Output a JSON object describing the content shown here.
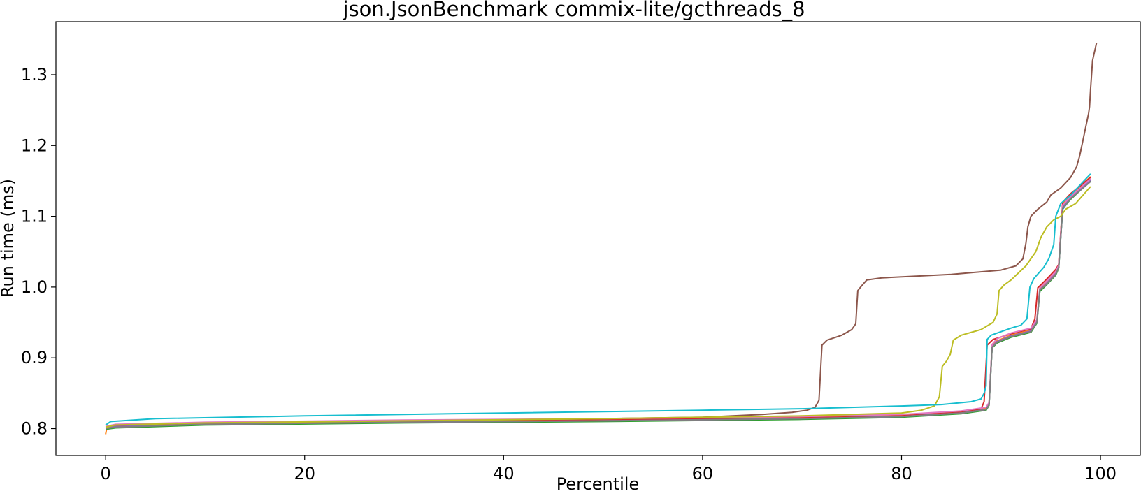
{
  "chart_data": {
    "type": "line",
    "title": "json.JsonBenchmark commix-lite/gcthreads_8",
    "xlabel": "Percentile",
    "ylabel": "Run time (ms)",
    "xlim": [
      -5,
      104
    ],
    "ylim": [
      0.762,
      1.375
    ],
    "xticks": [
      0,
      20,
      40,
      60,
      80,
      100
    ],
    "yticks": [
      0.8,
      0.9,
      1.0,
      1.1,
      1.2,
      1.3
    ],
    "xtick_labels": [
      "0",
      "20",
      "40",
      "60",
      "80",
      "100"
    ],
    "ytick_labels": [
      "0.8",
      "0.9",
      "1.0",
      "1.1",
      "1.2",
      "1.3"
    ],
    "grid": false,
    "legend": "none",
    "series": [
      {
        "color": "#1f77b4",
        "points": [
          [
            0,
            0.8
          ],
          [
            1,
            0.802
          ],
          [
            10,
            0.806
          ],
          [
            30,
            0.809
          ],
          [
            50,
            0.811
          ],
          [
            70,
            0.814
          ],
          [
            80,
            0.817
          ],
          [
            86,
            0.822
          ],
          [
            88.5,
            0.827
          ],
          [
            88.8,
            0.835
          ],
          [
            89.1,
            0.915
          ],
          [
            89.6,
            0.922
          ],
          [
            91,
            0.93
          ],
          [
            93,
            0.937
          ],
          [
            93.6,
            0.95
          ],
          [
            93.9,
            0.995
          ],
          [
            94.5,
            1.003
          ],
          [
            95.5,
            1.018
          ],
          [
            95.8,
            1.028
          ],
          [
            96.2,
            1.11
          ],
          [
            97,
            1.125
          ],
          [
            99,
            1.152
          ]
        ]
      },
      {
        "color": "#ff7f0e",
        "points": [
          [
            0,
            0.792
          ],
          [
            0.1,
            0.8
          ],
          [
            1,
            0.803
          ],
          [
            10,
            0.807
          ],
          [
            30,
            0.81
          ],
          [
            50,
            0.813
          ],
          [
            70,
            0.816
          ],
          [
            80,
            0.819
          ],
          [
            86,
            0.824
          ],
          [
            88.5,
            0.829
          ],
          [
            88.8,
            0.836
          ],
          [
            89.1,
            0.917
          ],
          [
            89.6,
            0.924
          ],
          [
            91,
            0.932
          ],
          [
            93,
            0.939
          ],
          [
            93.6,
            0.952
          ],
          [
            93.9,
            0.998
          ],
          [
            94.5,
            1.005
          ],
          [
            95.5,
            1.021
          ],
          [
            95.8,
            1.03
          ],
          [
            96.2,
            1.118
          ],
          [
            97,
            1.13
          ],
          [
            99,
            1.156
          ]
        ]
      },
      {
        "color": "#2ca02c",
        "points": [
          [
            0,
            0.799
          ],
          [
            1,
            0.801
          ],
          [
            10,
            0.805
          ],
          [
            30,
            0.808
          ],
          [
            50,
            0.81
          ],
          [
            70,
            0.813
          ],
          [
            80,
            0.816
          ],
          [
            86,
            0.821
          ],
          [
            88.5,
            0.826
          ],
          [
            88.8,
            0.833
          ],
          [
            89.1,
            0.914
          ],
          [
            89.6,
            0.921
          ],
          [
            91,
            0.929
          ],
          [
            93,
            0.936
          ],
          [
            93.6,
            0.949
          ],
          [
            93.9,
            0.994
          ],
          [
            94.5,
            1.002
          ],
          [
            95.5,
            1.017
          ],
          [
            95.8,
            1.027
          ],
          [
            96.2,
            1.112
          ],
          [
            97,
            1.124
          ],
          [
            99,
            1.15
          ]
        ]
      },
      {
        "color": "#d62728",
        "points": [
          [
            0,
            0.801
          ],
          [
            1,
            0.804
          ],
          [
            10,
            0.807
          ],
          [
            30,
            0.81
          ],
          [
            50,
            0.812
          ],
          [
            70,
            0.815
          ],
          [
            80,
            0.818
          ],
          [
            86,
            0.823
          ],
          [
            88,
            0.828
          ],
          [
            88.3,
            0.838
          ],
          [
            88.6,
            0.918
          ],
          [
            89.2,
            0.926
          ],
          [
            91,
            0.934
          ],
          [
            93,
            0.941
          ],
          [
            93.4,
            0.955
          ],
          [
            93.7,
            0.999
          ],
          [
            94.5,
            1.01
          ],
          [
            95.5,
            1.025
          ],
          [
            95.8,
            1.032
          ],
          [
            96.2,
            1.12
          ],
          [
            97,
            1.132
          ],
          [
            99,
            1.155
          ]
        ]
      },
      {
        "color": "#9467bd",
        "points": [
          [
            0,
            0.801
          ],
          [
            1,
            0.803
          ],
          [
            10,
            0.806
          ],
          [
            30,
            0.809
          ],
          [
            50,
            0.811
          ],
          [
            70,
            0.814
          ],
          [
            80,
            0.817
          ],
          [
            86,
            0.822
          ],
          [
            88.5,
            0.827
          ],
          [
            88.8,
            0.834
          ],
          [
            89.1,
            0.916
          ],
          [
            89.6,
            0.923
          ],
          [
            91,
            0.931
          ],
          [
            93,
            0.938
          ],
          [
            93.6,
            0.951
          ],
          [
            93.9,
            0.996
          ],
          [
            94.5,
            1.004
          ],
          [
            95.5,
            1.019
          ],
          [
            95.8,
            1.029
          ],
          [
            96.2,
            1.114
          ],
          [
            97,
            1.127
          ],
          [
            99,
            1.151
          ]
        ]
      },
      {
        "color": "#8c564b",
        "points": [
          [
            0,
            0.802
          ],
          [
            1,
            0.805
          ],
          [
            10,
            0.808
          ],
          [
            30,
            0.811
          ],
          [
            50,
            0.814
          ],
          [
            60,
            0.816
          ],
          [
            66,
            0.82
          ],
          [
            69,
            0.823
          ],
          [
            70.5,
            0.826
          ],
          [
            71.3,
            0.83
          ],
          [
            71.7,
            0.84
          ],
          [
            72,
            0.918
          ],
          [
            72.5,
            0.925
          ],
          [
            74,
            0.932
          ],
          [
            75,
            0.94
          ],
          [
            75.4,
            0.948
          ],
          [
            75.6,
            0.995
          ],
          [
            76,
            1.002
          ],
          [
            76.5,
            1.01
          ],
          [
            78,
            1.013
          ],
          [
            85,
            1.018
          ],
          [
            90,
            1.024
          ],
          [
            91.5,
            1.03
          ],
          [
            92.2,
            1.04
          ],
          [
            92.5,
            1.062
          ],
          [
            92.7,
            1.085
          ],
          [
            93,
            1.1
          ],
          [
            93.7,
            1.11
          ],
          [
            94.6,
            1.12
          ],
          [
            95,
            1.13
          ],
          [
            96,
            1.14
          ],
          [
            97,
            1.155
          ],
          [
            97.6,
            1.17
          ],
          [
            97.9,
            1.185
          ],
          [
            98.2,
            1.205
          ],
          [
            98.5,
            1.225
          ],
          [
            98.8,
            1.245
          ],
          [
            98.9,
            1.255
          ],
          [
            99,
            1.28
          ],
          [
            99.1,
            1.3
          ],
          [
            99.2,
            1.32
          ],
          [
            99.6,
            1.345
          ]
        ]
      },
      {
        "color": "#e377c2",
        "points": [
          [
            0,
            0.803
          ],
          [
            1,
            0.806
          ],
          [
            10,
            0.809
          ],
          [
            30,
            0.812
          ],
          [
            50,
            0.814
          ],
          [
            70,
            0.817
          ],
          [
            80,
            0.82
          ],
          [
            86,
            0.825
          ],
          [
            88.5,
            0.83
          ],
          [
            88.8,
            0.837
          ],
          [
            89.1,
            0.919
          ],
          [
            89.6,
            0.927
          ],
          [
            91,
            0.935
          ],
          [
            93,
            0.942
          ],
          [
            93.6,
            0.954
          ],
          [
            93.9,
            0.999
          ],
          [
            94.5,
            1.007
          ],
          [
            95.5,
            1.022
          ],
          [
            95.8,
            1.031
          ],
          [
            96.2,
            1.116
          ],
          [
            97,
            1.128
          ],
          [
            99,
            1.153
          ]
        ]
      },
      {
        "color": "#7f7f7f",
        "points": [
          [
            0,
            0.8
          ],
          [
            1,
            0.802
          ],
          [
            10,
            0.806
          ],
          [
            30,
            0.809
          ],
          [
            50,
            0.811
          ],
          [
            70,
            0.814
          ],
          [
            80,
            0.817
          ],
          [
            86,
            0.822
          ],
          [
            88.5,
            0.827
          ],
          [
            88.8,
            0.834
          ],
          [
            89.1,
            0.915
          ],
          [
            89.6,
            0.922
          ],
          [
            91,
            0.93
          ],
          [
            93,
            0.937
          ],
          [
            93.6,
            0.95
          ],
          [
            93.9,
            0.996
          ],
          [
            94.5,
            1.003
          ],
          [
            95.5,
            1.018
          ],
          [
            95.8,
            1.028
          ],
          [
            96.2,
            1.111
          ],
          [
            97,
            1.125
          ],
          [
            99,
            1.149
          ]
        ]
      },
      {
        "color": "#bcbd22",
        "points": [
          [
            0,
            0.802
          ],
          [
            1,
            0.805
          ],
          [
            10,
            0.808
          ],
          [
            30,
            0.811
          ],
          [
            50,
            0.814
          ],
          [
            70,
            0.818
          ],
          [
            80,
            0.822
          ],
          [
            82,
            0.826
          ],
          [
            83.3,
            0.832
          ],
          [
            83.8,
            0.845
          ],
          [
            84.1,
            0.888
          ],
          [
            84.5,
            0.895
          ],
          [
            84.9,
            0.905
          ],
          [
            85.2,
            0.925
          ],
          [
            86,
            0.932
          ],
          [
            88,
            0.94
          ],
          [
            89.2,
            0.95
          ],
          [
            89.6,
            0.962
          ],
          [
            89.8,
            0.995
          ],
          [
            90.3,
            1.003
          ],
          [
            91,
            1.01
          ],
          [
            92.5,
            1.03
          ],
          [
            93.5,
            1.05
          ],
          [
            94,
            1.07
          ],
          [
            94.6,
            1.085
          ],
          [
            95.3,
            1.095
          ],
          [
            96,
            1.1
          ],
          [
            96.5,
            1.11
          ],
          [
            97.5,
            1.118
          ],
          [
            99,
            1.142
          ]
        ]
      },
      {
        "color": "#17becf",
        "points": [
          [
            0,
            0.805
          ],
          [
            0.5,
            0.81
          ],
          [
            5,
            0.814
          ],
          [
            20,
            0.818
          ],
          [
            40,
            0.822
          ],
          [
            60,
            0.826
          ],
          [
            70,
            0.828
          ],
          [
            80,
            0.832
          ],
          [
            84,
            0.834
          ],
          [
            87,
            0.838
          ],
          [
            88,
            0.842
          ],
          [
            88.3,
            0.85
          ],
          [
            88.5,
            0.86
          ],
          [
            88.6,
            0.926
          ],
          [
            89,
            0.932
          ],
          [
            91,
            0.942
          ],
          [
            92,
            0.946
          ],
          [
            92.6,
            0.955
          ],
          [
            92.9,
            1.0
          ],
          [
            93.3,
            1.012
          ],
          [
            94.3,
            1.028
          ],
          [
            94.8,
            1.04
          ],
          [
            95.3,
            1.06
          ],
          [
            95.5,
            1.1
          ],
          [
            96,
            1.118
          ],
          [
            97,
            1.13
          ],
          [
            99,
            1.16
          ]
        ]
      }
    ]
  }
}
